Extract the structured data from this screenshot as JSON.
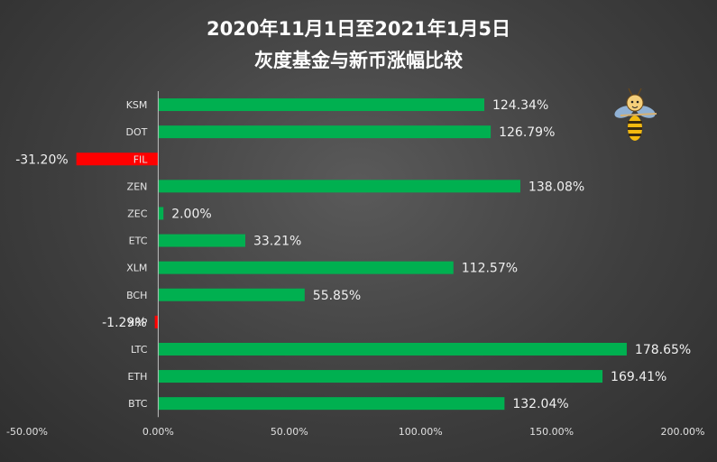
{
  "chart_data": {
    "type": "bar",
    "orientation": "horizontal",
    "title": "2020年11月1日至2021年1月5日",
    "subtitle": "灰度基金与新币涨幅比较",
    "categories": [
      "KSM",
      "DOT",
      "FIL",
      "ZEN",
      "ZEC",
      "ETC",
      "XLM",
      "BCH",
      "XRP",
      "LTC",
      "ETH",
      "BTC"
    ],
    "values": [
      124.34,
      126.79,
      -31.2,
      138.08,
      2.0,
      33.21,
      112.57,
      55.85,
      -1.29,
      178.65,
      169.41,
      132.04
    ],
    "value_labels": [
      "124.34%",
      "126.79%",
      "-31.20%",
      "138.08%",
      "2.00%",
      "33.21%",
      "112.57%",
      "55.85%",
      "-1.29%",
      "178.65%",
      "169.41%",
      "132.04%"
    ],
    "xlim": [
      -50,
      200
    ],
    "x_ticks": [
      -50,
      0,
      50,
      100,
      150,
      200
    ],
    "x_tick_labels": [
      "-50.00%",
      "0.00%",
      "50.00%",
      "100.00%",
      "150.00%",
      "200.00%"
    ],
    "grid": false,
    "colors": {
      "positive": "#00b050",
      "negative": "#ff0000",
      "axis": "#bfbfbf"
    }
  },
  "decoration": {
    "logo_icon": "bee-mascot-icon"
  }
}
